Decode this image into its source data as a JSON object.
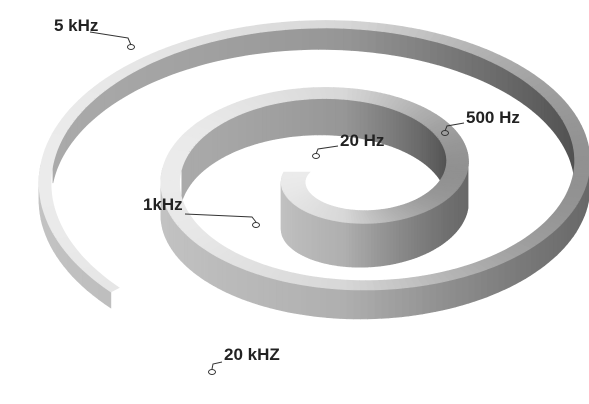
{
  "labels": [
    {
      "text": "5 kHz"
    },
    {
      "text": "500 Hz"
    },
    {
      "text": "20 Hz"
    },
    {
      "text": "1kHz"
    },
    {
      "text": "20 kHZ"
    }
  ]
}
